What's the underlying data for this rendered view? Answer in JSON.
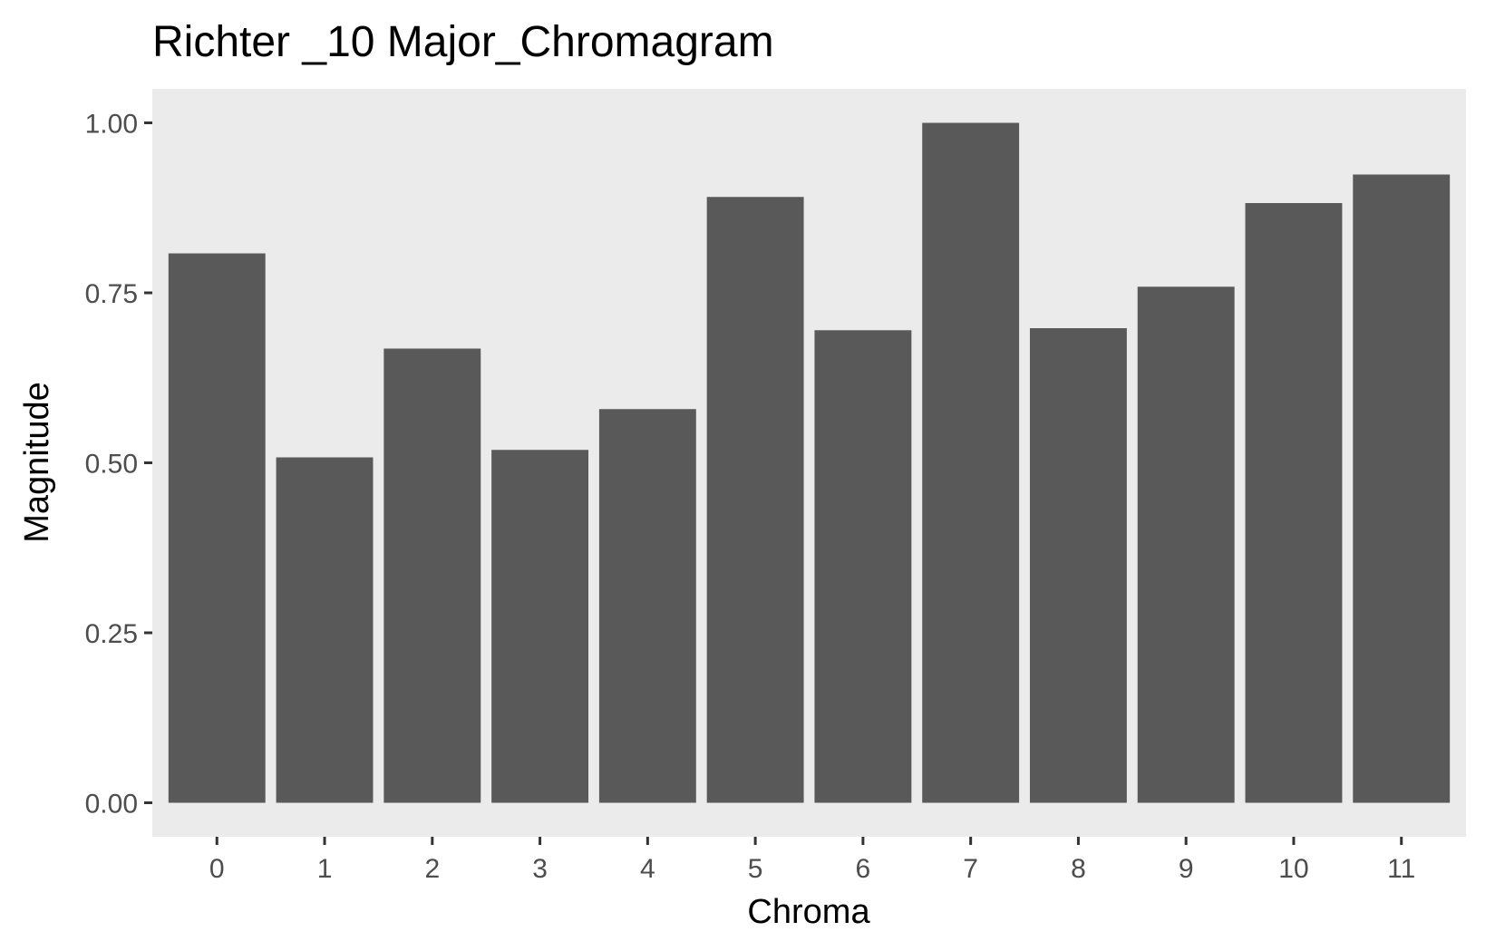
{
  "chart_data": {
    "type": "bar",
    "title": "Richter _10 Major_Chromagram",
    "xlabel": "Chroma",
    "ylabel": "Magnitude",
    "categories": [
      "0",
      "1",
      "2",
      "3",
      "4",
      "5",
      "6",
      "7",
      "8",
      "9",
      "10",
      "11"
    ],
    "values": [
      0.808,
      0.508,
      0.668,
      0.519,
      0.579,
      0.891,
      0.695,
      1.0,
      0.698,
      0.759,
      0.882,
      0.924
    ],
    "ylim": [
      -0.05,
      1.05
    ],
    "yticks": [
      0.0,
      0.25,
      0.5,
      0.75,
      1.0
    ],
    "ytick_labels": [
      "0.00",
      "0.25",
      "0.50",
      "0.75",
      "1.00"
    ],
    "grid": false,
    "legend": "none",
    "colors": {
      "bar": "#595959",
      "panel": "#ebebeb",
      "tick": "#333333",
      "tick_text": "#4d4d4d"
    }
  }
}
